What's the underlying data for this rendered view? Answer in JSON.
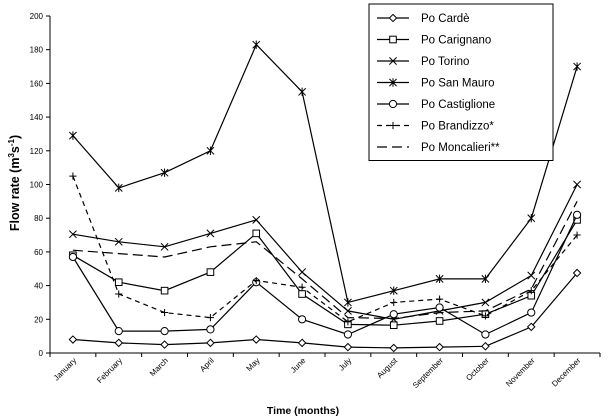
{
  "chart_data": {
    "type": "line",
    "title": "",
    "xlabel": "Time (months)",
    "ylabel": "Flow rate (m",
    "ylabel_sup": "3",
    "ylabel_unit_tail": "s",
    "ylabel_sup2": "-1",
    "ylabel_close": ")",
    "ylim": [
      0,
      200
    ],
    "yticks": [
      0,
      20,
      40,
      60,
      80,
      100,
      120,
      140,
      160,
      180,
      200
    ],
    "ytick_labels": [
      "0",
      "20",
      "40",
      "60",
      "80",
      "100",
      "120",
      "140",
      "160",
      "180",
      "200"
    ],
    "categories": [
      "January",
      "February",
      "March",
      "April",
      "May",
      "June",
      "July",
      "August",
      "September",
      "October",
      "November",
      "December"
    ],
    "grid": false,
    "legend_position": "top-right",
    "series": [
      {
        "name": "Po Cardè",
        "values": [
          8,
          6,
          5,
          6,
          8,
          6,
          3.5,
          3,
          3.5,
          4,
          15.5,
          47.5
        ],
        "marker": "diamond",
        "dash": "solid",
        "color": "#000000"
      },
      {
        "name": "Po Carignano",
        "values": [
          58,
          42,
          37,
          48,
          71,
          35,
          17,
          16.5,
          19,
          23,
          34,
          79
        ],
        "marker": "square",
        "dash": "solid",
        "color": "#000000"
      },
      {
        "name": "Po Torino",
        "values": [
          70.5,
          66,
          63,
          71,
          79,
          48,
          25,
          20,
          25,
          30,
          46,
          100
        ],
        "marker": "x",
        "dash": "solid",
        "color": "#000000"
      },
      {
        "name": "Po San Mauro",
        "values": [
          129,
          98,
          107,
          120,
          183,
          155,
          30,
          37,
          44,
          44,
          80,
          170
        ],
        "marker": "asterisk",
        "dash": "solid",
        "color": "#000000"
      },
      {
        "name": "Po Castiglione",
        "values": [
          57,
          13,
          13,
          14,
          42,
          20,
          11,
          23,
          27,
          11,
          24,
          82
        ],
        "marker": "circle",
        "dash": "solid",
        "color": "#000000"
      },
      {
        "name": "Po Brandizzo*",
        "values": [
          105,
          35,
          24,
          21,
          43,
          39,
          18.5,
          30,
          32,
          22,
          37,
          70
        ],
        "marker": "plus",
        "dash": "short",
        "color": "#000000"
      },
      {
        "name": "Po Moncalieri**",
        "values": [
          61,
          59,
          57,
          63,
          66,
          44,
          21,
          20.5,
          24,
          25,
          38,
          90
        ],
        "marker": "none",
        "dash": "long",
        "color": "#000000"
      }
    ]
  }
}
